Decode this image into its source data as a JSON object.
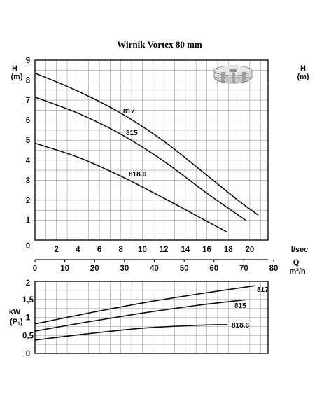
{
  "title": "Wirnik Vortex 80 mm",
  "chart_data": [
    {
      "type": "line",
      "name": "head",
      "ylabel_left": [
        "H",
        "(m)"
      ],
      "ylabel_right": [
        "H",
        "(m)"
      ],
      "ylim": [
        0,
        9
      ],
      "yticks": [
        "0",
        "1",
        "2",
        "3",
        "4",
        "5",
        "6",
        "7",
        "8",
        "9"
      ],
      "xlim_lsec": [
        0,
        21.7
      ],
      "xticks_lsec": [
        "2",
        "4",
        "6",
        "8",
        "10",
        "12",
        "14",
        "16",
        "18",
        "20"
      ],
      "xunit_lsec": "l/sec",
      "xlabel_q": "Q",
      "xticks_m3h": [
        "0",
        "10",
        "20",
        "30",
        "40",
        "50",
        "60",
        "70",
        "80"
      ],
      "xunit_m3h": "m³/h",
      "grid": true,
      "series": [
        {
          "name": "817",
          "x": [
            0,
            4,
            8,
            12,
            16,
            19,
            20.8
          ],
          "y": [
            8.35,
            7.45,
            6.35,
            4.95,
            3.25,
            1.95,
            1.25
          ]
        },
        {
          "name": "815",
          "x": [
            0,
            4,
            8,
            12,
            16,
            19.6
          ],
          "y": [
            7.15,
            6.35,
            5.3,
            3.95,
            2.35,
            1.0
          ]
        },
        {
          "name": "818.6",
          "x": [
            0,
            4,
            8,
            12,
            16,
            17.9
          ],
          "y": [
            4.85,
            4.15,
            3.2,
            2.1,
            0.95,
            0.4
          ]
        }
      ]
    },
    {
      "type": "line",
      "name": "power",
      "ylabel": [
        "kW",
        "(P",
        "1",
        ")"
      ],
      "ylim": [
        0,
        2
      ],
      "yticks": [
        "0",
        "0,5",
        "1",
        "1,5",
        "2"
      ],
      "xlim": [
        0,
        21.7
      ],
      "grid": true,
      "series": [
        {
          "name": "817",
          "x": [
            0,
            5,
            10,
            15,
            20.5
          ],
          "y": [
            0.82,
            1.12,
            1.4,
            1.64,
            1.88
          ]
        },
        {
          "name": "815",
          "x": [
            0,
            5,
            10,
            15,
            19.6
          ],
          "y": [
            0.62,
            0.88,
            1.12,
            1.33,
            1.49
          ]
        },
        {
          "name": "818.6",
          "x": [
            0,
            5,
            10,
            15,
            17.9
          ],
          "y": [
            0.37,
            0.55,
            0.7,
            0.78,
            0.8
          ]
        }
      ]
    }
  ]
}
